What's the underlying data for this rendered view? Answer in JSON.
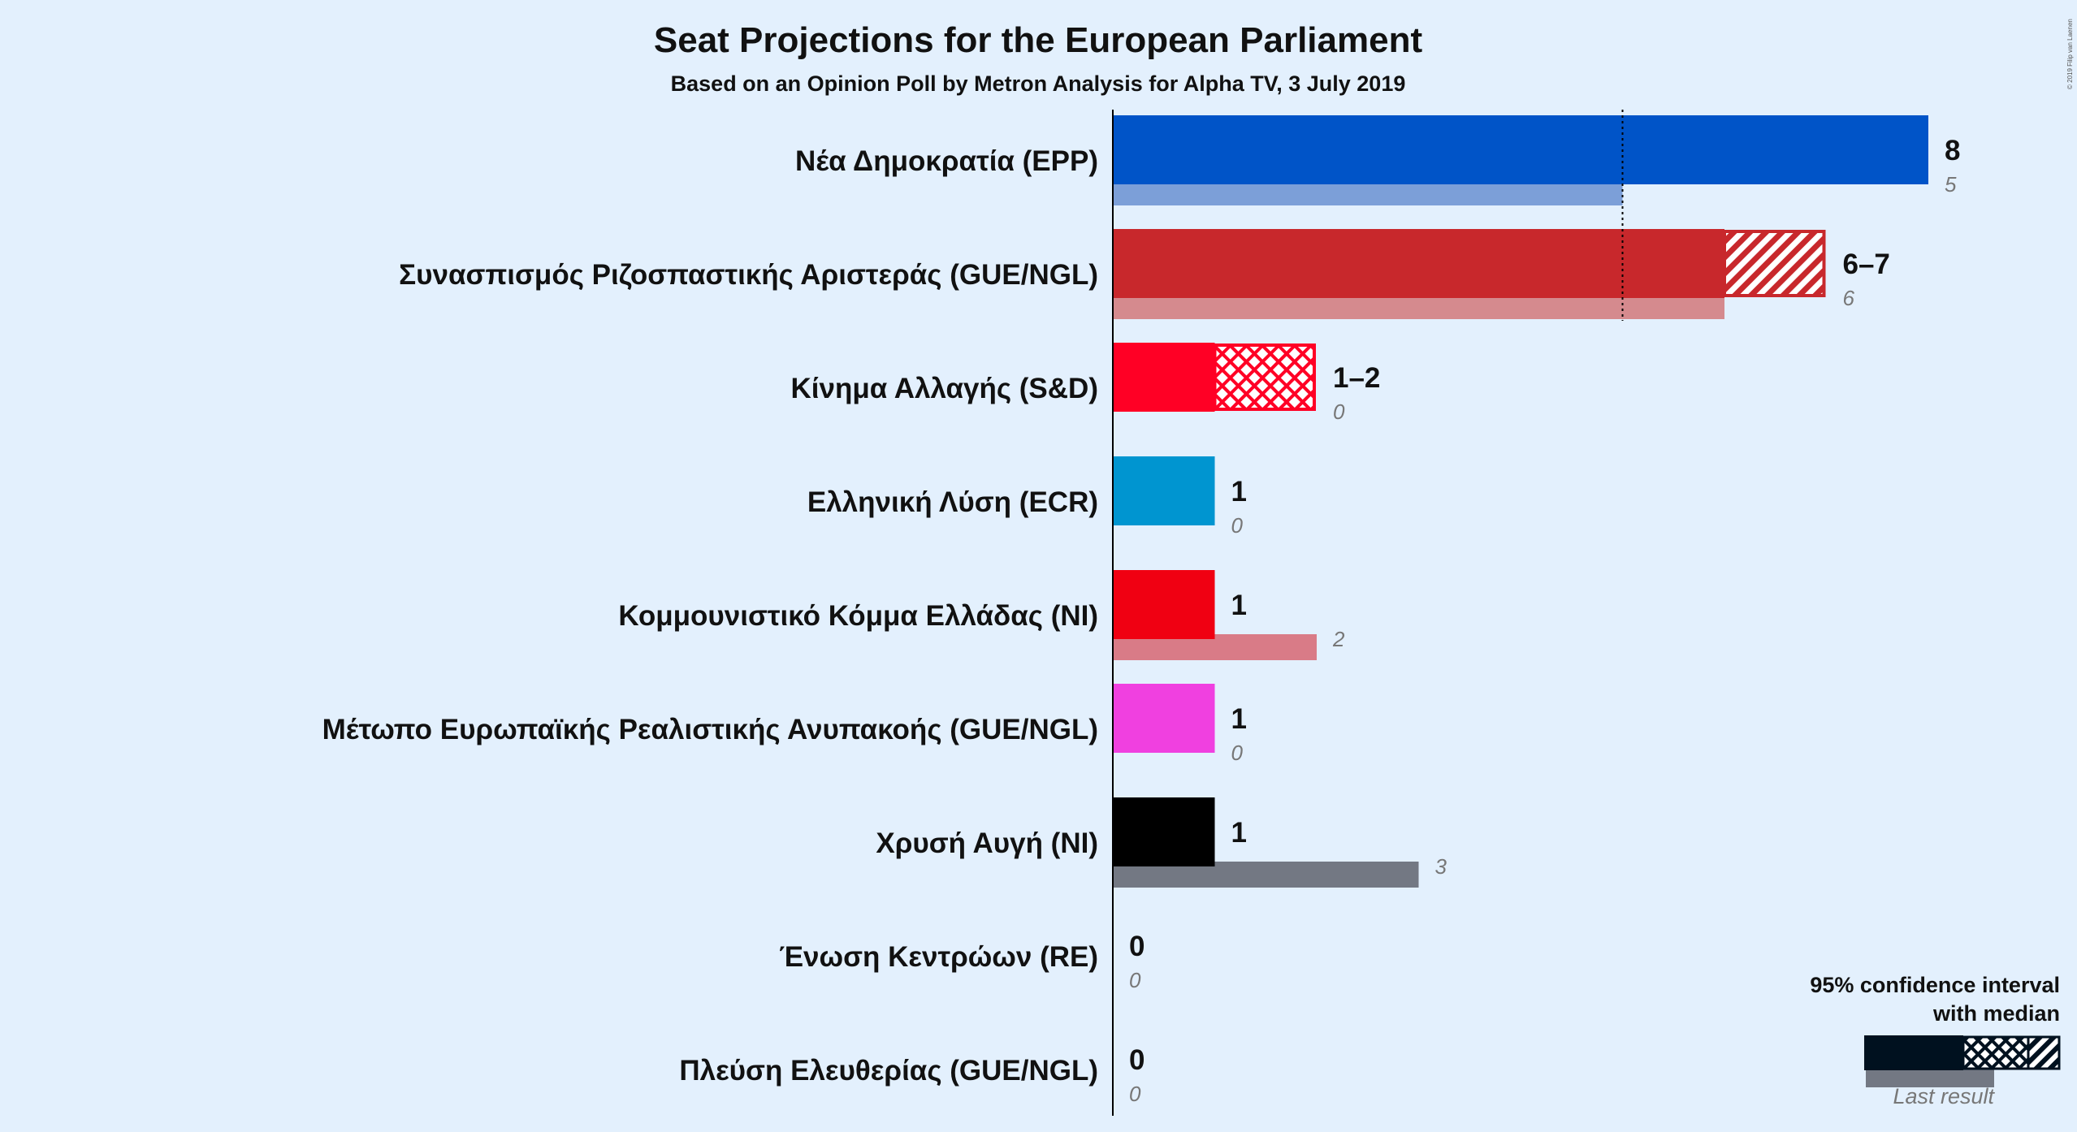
{
  "chart_data": {
    "type": "bar",
    "orientation": "horizontal",
    "title": "Seat Projections for the European Parliament",
    "subtitle": "Based on an Opinion Poll by Metron Analysis for Alpha TV, 3 July 2019",
    "majority_line": 5,
    "xlim": [
      0,
      8
    ],
    "series": [
      {
        "party": "Νέα Δημοκρατία (EPP)",
        "label": "8",
        "low": 8,
        "median": 8,
        "high": 8,
        "last": 5,
        "last_label": "5",
        "color": "#0054c8",
        "last_color": "#7c9fd8"
      },
      {
        "party": "Συνασπισμός Ριζοσπαστικής Αριστεράς (GUE/NGL)",
        "label": "6–7",
        "low": 6,
        "median": 6,
        "high": 7,
        "last": 6,
        "last_label": "6",
        "color": "#c8282c",
        "last_color": "#d58a8e"
      },
      {
        "party": "Κίνημα Αλλαγής (S&D)",
        "label": "1–2",
        "low": 1,
        "median": 1,
        "high": 2,
        "last": 0,
        "last_label": "0",
        "color": "#ff0025",
        "last_color": "#f08c98"
      },
      {
        "party": "Ελληνική Λύση (ECR)",
        "label": "1",
        "low": 1,
        "median": 1,
        "high": 1,
        "last": 0,
        "last_label": "0",
        "color": "#0095d0",
        "last_color": "#7cc0e0"
      },
      {
        "party": "Κομμουνιστικό Κόμμα Ελλάδας (NI)",
        "label": "1",
        "low": 1,
        "median": 1,
        "high": 1,
        "last": 2,
        "last_label": "2",
        "color": "#f00012",
        "last_color": "#d97b87"
      },
      {
        "party": "Μέτωπο Ευρωπαϊκής Ρεαλιστικής Ανυπακοής (GUE/NGL)",
        "label": "1",
        "low": 1,
        "median": 1,
        "high": 1,
        "last": 0,
        "last_label": "0",
        "color": "#f040e0",
        "last_color": "#f09ae8"
      },
      {
        "party": "Χρυσή Αυγή (NI)",
        "label": "1",
        "low": 1,
        "median": 1,
        "high": 1,
        "last": 3,
        "last_label": "3",
        "color": "#000000",
        "last_color": "#737883"
      },
      {
        "party": "Ένωση Κεντρώων (RE)",
        "label": "0",
        "low": 0,
        "median": 0,
        "high": 0,
        "last": 0,
        "last_label": "0",
        "color": "#f2c200",
        "last_color": "#cccccc"
      },
      {
        "party": "Πλεύση Ελευθερίας (GUE/NGL)",
        "label": "0",
        "low": 0,
        "median": 0,
        "high": 0,
        "last": 0,
        "last_label": "0",
        "color": "#ff6600",
        "last_color": "#cccccc"
      }
    ],
    "legend": {
      "line1": "95% confidence interval",
      "line2": "with median",
      "last": "Last result",
      "placement": "bottom-right"
    },
    "copyright": "© 2019 Filip van Laenen"
  }
}
